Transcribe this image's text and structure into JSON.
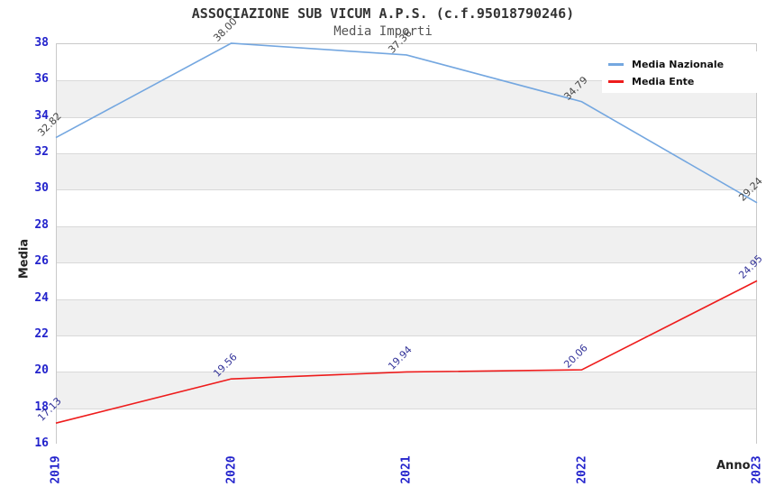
{
  "title": "ASSOCIAZIONE SUB VICUM A.P.S. (c.f.95018790246)",
  "subtitle": "Media Importi",
  "chart_data": {
    "type": "line",
    "x": [
      "2019",
      "2020",
      "2021",
      "2022",
      "2023"
    ],
    "series": [
      {
        "name": "Media Nazionale",
        "color": "#74a7e0",
        "label_color": "#444444",
        "values": [
          32.82,
          38.0,
          37.36,
          34.79,
          29.24
        ]
      },
      {
        "name": "Media Ente",
        "color": "#ee1c1c",
        "label_color": "#333399",
        "values": [
          17.13,
          19.56,
          19.94,
          20.06,
          24.95
        ]
      }
    ],
    "xlabel": "Anno",
    "ylabel": "Media",
    "ylim": [
      16,
      38
    ],
    "ytick_step": 2,
    "value_label_decimals": 2,
    "legend_position": "top-right",
    "grid": "horizontal",
    "band_colors": [
      "#ffffff",
      "#f0f0f0"
    ],
    "tick_label_color": "#2323cc"
  }
}
